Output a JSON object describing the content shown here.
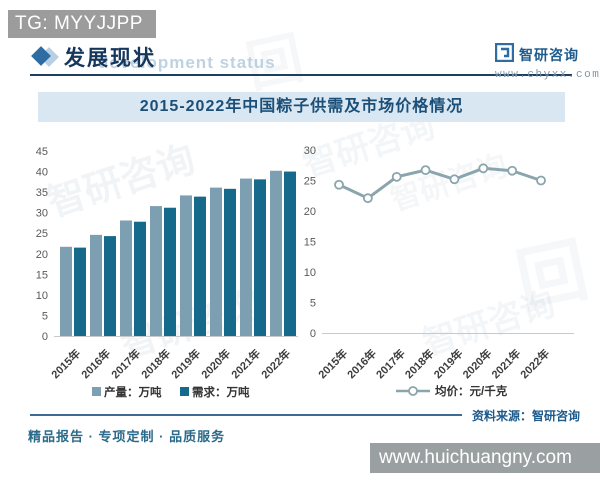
{
  "page": {
    "tg_badge": "TG: MYYJJPP",
    "section": {
      "title": "发展现状",
      "watermark_text": "development status"
    },
    "brand": {
      "name": "智研咨询",
      "site": "www.chyxx.com"
    },
    "source": "资料来源：智研咨询",
    "tagline": "精品报告 · 专项定制 · 品质服务",
    "footer_url": "www.huichuangny.com",
    "watermark_repeat": "智研咨询"
  },
  "colors": {
    "accent_navy": "#16365c",
    "bar_production": "#7d9fb2",
    "bar_demand": "#156a8c",
    "price_line": "#8aa5ad",
    "title_band_bg": "#d9e7f2",
    "tg_badge_bg": "#9c9c9c",
    "footer_bar_bg": "#9aa0a2"
  },
  "chart_data": {
    "title": "2015-2022年中国粽子供需及市场价格情况",
    "categories": [
      "2015年",
      "2016年",
      "2017年",
      "2018年",
      "2019年",
      "2020年",
      "2021年",
      "2022年"
    ],
    "charts": [
      {
        "type": "bar",
        "name": "supply-demand",
        "ylabel": "",
        "ylim": [
          0,
          45
        ],
        "ytick_step": 5,
        "grid": false,
        "legend_position": "bottom",
        "series": [
          {
            "name": "产量：万吨",
            "color": "#7d9fb2",
            "values": [
              21.7,
              24.6,
              28.1,
              31.6,
              34.2,
              36.1,
              38.3,
              40.2
            ]
          },
          {
            "name": "需求：万吨",
            "color": "#156a8c",
            "values": [
              21.5,
              24.3,
              27.8,
              31.2,
              33.9,
              35.8,
              38.1,
              40.0
            ]
          }
        ]
      },
      {
        "type": "line",
        "name": "avg-price",
        "ylabel": "",
        "ylim": [
          0,
          30
        ],
        "ytick_step": 5,
        "grid": false,
        "legend_position": "bottom",
        "series": [
          {
            "name": "均价：元/千克",
            "color": "#8aa5ad",
            "values": [
              24.3,
              22.1,
              25.6,
              26.7,
              25.2,
              27.0,
              26.6,
              25.0
            ]
          }
        ]
      }
    ]
  }
}
